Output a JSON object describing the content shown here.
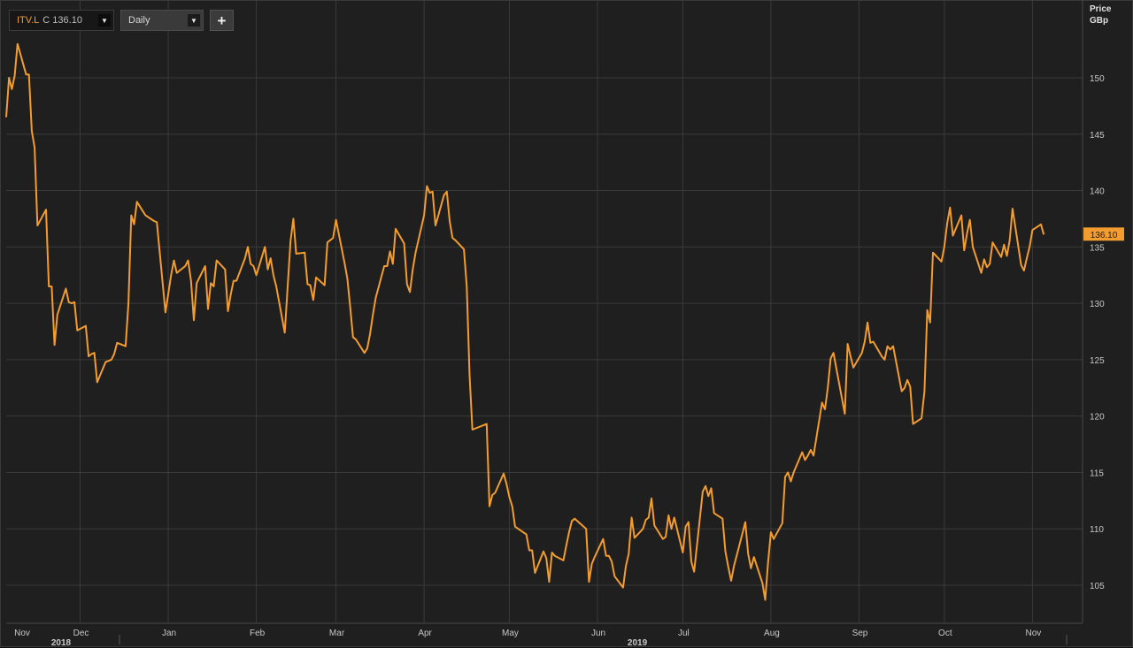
{
  "toolbar": {
    "ric": "ITV.L",
    "close_prefix": "C",
    "close_value": "136.10",
    "interval": "Daily",
    "add_label": "+",
    "dropdown_glyph": "▼"
  },
  "axis_header": {
    "line1": "Price",
    "line2": "GBp"
  },
  "colors": {
    "line": "#f39c2f",
    "background": "#1f1f1f",
    "grid": "#3a3a3a",
    "last_label_bg": "#f39c2f"
  },
  "chart_data": {
    "type": "line",
    "title": "",
    "ylabel": "Price GBp",
    "ylim": [
      101.5,
      155
    ],
    "yticks": [
      105,
      110,
      115,
      120,
      125,
      130,
      135,
      140,
      145,
      150
    ],
    "grid": true,
    "last_value": 136.1,
    "x_start": "2018-11-05",
    "x_end": "2019-11-18",
    "month_ticks": [
      {
        "date": "2018-11-01",
        "label": "Nov",
        "year": "2018"
      },
      {
        "date": "2018-12-01",
        "label": "Dec"
      },
      {
        "date": "2019-01-01",
        "label": "Jan"
      },
      {
        "date": "2019-02-01",
        "label": "Feb"
      },
      {
        "date": "2019-03-01",
        "label": "Mar"
      },
      {
        "date": "2019-04-01",
        "label": "Apr"
      },
      {
        "date": "2019-05-01",
        "label": "May"
      },
      {
        "date": "2019-06-01",
        "label": "Jun",
        "year": "2019"
      },
      {
        "date": "2019-07-01",
        "label": "Jul"
      },
      {
        "date": "2019-08-01",
        "label": "Aug"
      },
      {
        "date": "2019-09-01",
        "label": "Sep"
      },
      {
        "date": "2019-10-01",
        "label": "Oct"
      },
      {
        "date": "2019-11-01",
        "label": "Nov"
      }
    ],
    "series": [
      {
        "values": [
          [
            "2018-11-05",
            146.5
          ],
          [
            "2018-11-06",
            150.0
          ],
          [
            "2018-11-07",
            149.0
          ],
          [
            "2018-11-08",
            150.2
          ],
          [
            "2018-11-09",
            153.0
          ],
          [
            "2018-11-12",
            150.3
          ],
          [
            "2018-11-13",
            150.3
          ],
          [
            "2018-11-14",
            145.3
          ],
          [
            "2018-11-15",
            143.8
          ],
          [
            "2018-11-16",
            136.9
          ],
          [
            "2018-11-19",
            138.3
          ],
          [
            "2018-11-20",
            131.5
          ],
          [
            "2018-11-21",
            131.5
          ],
          [
            "2018-11-22",
            126.3
          ],
          [
            "2018-11-23",
            129.0
          ],
          [
            "2018-11-26",
            131.3
          ],
          [
            "2018-11-27",
            130.1
          ],
          [
            "2018-11-28",
            130.0
          ],
          [
            "2018-11-29",
            130.1
          ],
          [
            "2018-11-30",
            127.6
          ],
          [
            "2018-12-03",
            128.0
          ],
          [
            "2018-12-04",
            125.3
          ],
          [
            "2018-12-05",
            125.5
          ],
          [
            "2018-12-06",
            125.6
          ],
          [
            "2018-12-07",
            123.0
          ],
          [
            "2018-12-10",
            124.8
          ],
          [
            "2018-12-11",
            124.9
          ],
          [
            "2018-12-12",
            125.0
          ],
          [
            "2018-12-13",
            125.5
          ],
          [
            "2018-12-14",
            126.5
          ],
          [
            "2018-12-17",
            126.2
          ],
          [
            "2018-12-18",
            130.0
          ],
          [
            "2018-12-19",
            137.8
          ],
          [
            "2018-12-20",
            137.0
          ],
          [
            "2018-12-21",
            139.0
          ],
          [
            "2018-12-24",
            137.8
          ],
          [
            "2018-12-27",
            137.3
          ],
          [
            "2018-12-28",
            137.2
          ],
          [
            "2018-12-31",
            129.2
          ],
          [
            "2019-01-02",
            132.5
          ],
          [
            "2019-01-03",
            133.8
          ],
          [
            "2019-01-04",
            132.7
          ],
          [
            "2019-01-07",
            133.3
          ],
          [
            "2019-01-08",
            133.8
          ],
          [
            "2019-01-09",
            132.0
          ],
          [
            "2019-01-10",
            128.5
          ],
          [
            "2019-01-11",
            131.8
          ],
          [
            "2019-01-14",
            133.3
          ],
          [
            "2019-01-15",
            129.5
          ],
          [
            "2019-01-16",
            131.8
          ],
          [
            "2019-01-17",
            131.5
          ],
          [
            "2019-01-18",
            133.8
          ],
          [
            "2019-01-21",
            133.0
          ],
          [
            "2019-01-22",
            129.3
          ],
          [
            "2019-01-23",
            130.8
          ],
          [
            "2019-01-24",
            132.0
          ],
          [
            "2019-01-25",
            132.0
          ],
          [
            "2019-01-28",
            134.0
          ],
          [
            "2019-01-29",
            135.0
          ],
          [
            "2019-01-30",
            133.5
          ],
          [
            "2019-01-31",
            133.3
          ],
          [
            "2019-02-01",
            132.5
          ],
          [
            "2019-02-04",
            135.0
          ],
          [
            "2019-02-05",
            133.0
          ],
          [
            "2019-02-06",
            134.0
          ],
          [
            "2019-02-07",
            132.5
          ],
          [
            "2019-02-08",
            131.5
          ],
          [
            "2019-02-11",
            127.4
          ],
          [
            "2019-02-12",
            131.5
          ],
          [
            "2019-02-13",
            135.5
          ],
          [
            "2019-02-14",
            137.5
          ],
          [
            "2019-02-15",
            134.4
          ],
          [
            "2019-02-18",
            134.5
          ],
          [
            "2019-02-19",
            131.7
          ],
          [
            "2019-02-20",
            131.6
          ],
          [
            "2019-02-21",
            130.3
          ],
          [
            "2019-02-22",
            132.3
          ],
          [
            "2019-02-25",
            131.6
          ],
          [
            "2019-02-26",
            135.4
          ],
          [
            "2019-02-27",
            135.6
          ],
          [
            "2019-02-28",
            135.8
          ],
          [
            "2019-03-01",
            137.4
          ],
          [
            "2019-03-04",
            133.6
          ],
          [
            "2019-03-05",
            132.2
          ],
          [
            "2019-03-06",
            129.7
          ],
          [
            "2019-03-07",
            127.0
          ],
          [
            "2019-03-08",
            126.8
          ],
          [
            "2019-03-11",
            125.6
          ],
          [
            "2019-03-12",
            126.0
          ],
          [
            "2019-03-13",
            127.3
          ],
          [
            "2019-03-14",
            129.0
          ],
          [
            "2019-03-15",
            130.5
          ],
          [
            "2019-03-18",
            133.3
          ],
          [
            "2019-03-19",
            133.3
          ],
          [
            "2019-03-20",
            134.6
          ],
          [
            "2019-03-21",
            133.5
          ],
          [
            "2019-03-22",
            136.6
          ],
          [
            "2019-03-25",
            135.3
          ],
          [
            "2019-03-26",
            131.7
          ],
          [
            "2019-03-27",
            131.0
          ],
          [
            "2019-03-28",
            133.0
          ],
          [
            "2019-03-29",
            134.5
          ],
          [
            "2019-04-01",
            137.8
          ],
          [
            "2019-04-02",
            140.4
          ],
          [
            "2019-04-03",
            139.8
          ],
          [
            "2019-04-04",
            139.9
          ],
          [
            "2019-04-05",
            136.9
          ],
          [
            "2019-04-08",
            139.6
          ],
          [
            "2019-04-09",
            139.9
          ],
          [
            "2019-04-10",
            137.3
          ],
          [
            "2019-04-11",
            135.8
          ],
          [
            "2019-04-12",
            135.6
          ],
          [
            "2019-04-15",
            134.8
          ],
          [
            "2019-04-16",
            131.5
          ],
          [
            "2019-04-17",
            123.6
          ],
          [
            "2019-04-18",
            118.8
          ],
          [
            "2019-04-23",
            119.3
          ],
          [
            "2019-04-24",
            112.0
          ],
          [
            "2019-04-25",
            113.0
          ],
          [
            "2019-04-26",
            113.2
          ],
          [
            "2019-04-29",
            114.9
          ],
          [
            "2019-04-30",
            114.0
          ],
          [
            "2019-05-01",
            112.8
          ],
          [
            "2019-05-02",
            112.0
          ],
          [
            "2019-05-03",
            110.2
          ],
          [
            "2019-05-07",
            109.5
          ],
          [
            "2019-05-08",
            108.1
          ],
          [
            "2019-05-09",
            108.1
          ],
          [
            "2019-05-10",
            106.1
          ],
          [
            "2019-05-13",
            108.0
          ],
          [
            "2019-05-14",
            107.4
          ],
          [
            "2019-05-15",
            105.3
          ],
          [
            "2019-05-16",
            107.9
          ],
          [
            "2019-05-17",
            107.6
          ],
          [
            "2019-05-20",
            107.2
          ],
          [
            "2019-05-21",
            108.5
          ],
          [
            "2019-05-22",
            109.7
          ],
          [
            "2019-05-23",
            110.7
          ],
          [
            "2019-05-24",
            110.9
          ],
          [
            "2019-05-28",
            110.0
          ],
          [
            "2019-05-29",
            105.3
          ],
          [
            "2019-05-30",
            106.9
          ],
          [
            "2019-05-31",
            107.5
          ],
          [
            "2019-06-03",
            109.1
          ],
          [
            "2019-06-04",
            107.6
          ],
          [
            "2019-06-05",
            107.6
          ],
          [
            "2019-06-06",
            107.1
          ],
          [
            "2019-06-07",
            105.8
          ],
          [
            "2019-06-10",
            104.8
          ],
          [
            "2019-06-11",
            106.7
          ],
          [
            "2019-06-12",
            107.8
          ],
          [
            "2019-06-13",
            111.0
          ],
          [
            "2019-06-14",
            109.2
          ],
          [
            "2019-06-17",
            110.0
          ],
          [
            "2019-06-18",
            110.8
          ],
          [
            "2019-06-19",
            111.0
          ],
          [
            "2019-06-20",
            112.7
          ],
          [
            "2019-06-21",
            110.3
          ],
          [
            "2019-06-24",
            109.1
          ],
          [
            "2019-06-25",
            109.3
          ],
          [
            "2019-06-26",
            111.2
          ],
          [
            "2019-06-27",
            110.0
          ],
          [
            "2019-06-28",
            111.0
          ],
          [
            "2019-07-01",
            107.9
          ],
          [
            "2019-07-02",
            110.2
          ],
          [
            "2019-07-03",
            110.6
          ],
          [
            "2019-07-04",
            107.1
          ],
          [
            "2019-07-05",
            106.2
          ],
          [
            "2019-07-08",
            113.3
          ],
          [
            "2019-07-09",
            113.8
          ],
          [
            "2019-07-10",
            112.9
          ],
          [
            "2019-07-11",
            113.6
          ],
          [
            "2019-07-12",
            111.4
          ],
          [
            "2019-07-15",
            110.9
          ],
          [
            "2019-07-16",
            108.0
          ],
          [
            "2019-07-17",
            106.6
          ],
          [
            "2019-07-18",
            105.4
          ],
          [
            "2019-07-19",
            106.7
          ],
          [
            "2019-07-22",
            109.6
          ],
          [
            "2019-07-23",
            110.6
          ],
          [
            "2019-07-24",
            107.8
          ],
          [
            "2019-07-25",
            106.5
          ],
          [
            "2019-07-26",
            107.5
          ],
          [
            "2019-07-29",
            105.2
          ],
          [
            "2019-07-30",
            103.7
          ],
          [
            "2019-07-31",
            107.0
          ],
          [
            "2019-08-01",
            109.7
          ],
          [
            "2019-08-02",
            109.1
          ],
          [
            "2019-08-05",
            110.5
          ],
          [
            "2019-08-06",
            114.6
          ],
          [
            "2019-08-07",
            115.0
          ],
          [
            "2019-08-08",
            114.2
          ],
          [
            "2019-08-09",
            115.0
          ],
          [
            "2019-08-12",
            116.8
          ],
          [
            "2019-08-13",
            116.1
          ],
          [
            "2019-08-14",
            116.5
          ],
          [
            "2019-08-15",
            117.0
          ],
          [
            "2019-08-16",
            116.5
          ],
          [
            "2019-08-19",
            121.2
          ],
          [
            "2019-08-20",
            120.6
          ],
          [
            "2019-08-21",
            122.5
          ],
          [
            "2019-08-22",
            125.1
          ],
          [
            "2019-08-23",
            125.6
          ],
          [
            "2019-08-27",
            120.2
          ],
          [
            "2019-08-28",
            126.4
          ],
          [
            "2019-08-29",
            125.3
          ],
          [
            "2019-08-30",
            124.3
          ],
          [
            "2019-09-02",
            125.6
          ],
          [
            "2019-09-03",
            126.6
          ],
          [
            "2019-09-04",
            128.3
          ],
          [
            "2019-09-05",
            126.5
          ],
          [
            "2019-09-06",
            126.6
          ],
          [
            "2019-09-09",
            125.3
          ],
          [
            "2019-09-10",
            125.0
          ],
          [
            "2019-09-11",
            126.2
          ],
          [
            "2019-09-12",
            125.9
          ],
          [
            "2019-09-13",
            126.2
          ],
          [
            "2019-09-16",
            122.2
          ],
          [
            "2019-09-17",
            122.5
          ],
          [
            "2019-09-18",
            123.2
          ],
          [
            "2019-09-19",
            122.6
          ],
          [
            "2019-09-20",
            119.3
          ],
          [
            "2019-09-23",
            119.8
          ],
          [
            "2019-09-24",
            122.2
          ],
          [
            "2019-09-25",
            129.4
          ],
          [
            "2019-09-26",
            128.3
          ],
          [
            "2019-09-27",
            134.5
          ],
          [
            "2019-09-30",
            133.7
          ],
          [
            "2019-10-01",
            135.0
          ],
          [
            "2019-10-02",
            137.1
          ],
          [
            "2019-10-03",
            138.5
          ],
          [
            "2019-10-04",
            136.0
          ],
          [
            "2019-10-07",
            137.8
          ],
          [
            "2019-10-08",
            134.7
          ],
          [
            "2019-10-09",
            136.2
          ],
          [
            "2019-10-10",
            137.4
          ],
          [
            "2019-10-11",
            135.0
          ],
          [
            "2019-10-14",
            132.7
          ],
          [
            "2019-10-15",
            133.9
          ],
          [
            "2019-10-16",
            133.2
          ],
          [
            "2019-10-17",
            133.5
          ],
          [
            "2019-10-18",
            135.4
          ],
          [
            "2019-10-21",
            134.1
          ],
          [
            "2019-10-22",
            135.2
          ],
          [
            "2019-10-23",
            134.2
          ],
          [
            "2019-10-24",
            135.6
          ],
          [
            "2019-10-25",
            138.4
          ],
          [
            "2019-10-28",
            133.4
          ],
          [
            "2019-10-29",
            132.9
          ],
          [
            "2019-10-30",
            134.0
          ],
          [
            "2019-10-31",
            135.0
          ],
          [
            "2019-11-01",
            136.5
          ],
          [
            "2019-11-04",
            137.0
          ],
          [
            "2019-11-05",
            136.1
          ]
        ]
      }
    ]
  }
}
